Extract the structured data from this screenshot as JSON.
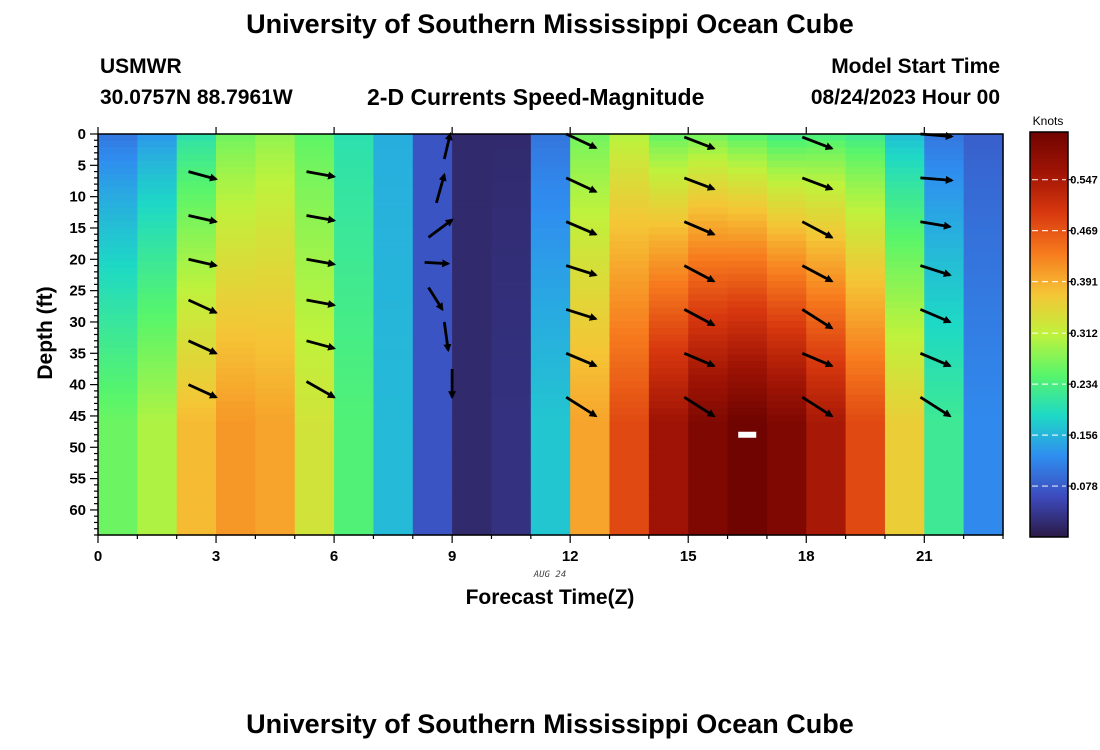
{
  "header": {
    "title": "University of Southern Mississippi Ocean Cube",
    "station": "USMWR",
    "coords": "30.0757N  88.7961W",
    "subtitle": "2-D Currents Speed-Magnitude",
    "model_start_label": "Model Start Time",
    "model_start_value": "08/24/2023 Hour 00"
  },
  "footer": {
    "title": "University of Southern Mississippi Ocean Cube"
  },
  "chart_data": {
    "type": "heatmap",
    "title": "2-D Currents Speed-Magnitude",
    "xlabel": "Forecast Time(Z)",
    "xlabel_date": "AUG 24",
    "ylabel": "Depth (ft)",
    "xlim": [
      0,
      23
    ],
    "ylim": [
      0,
      64
    ],
    "y_inverted": true,
    "x_ticks": [
      "0",
      "3",
      "6",
      "9",
      "12",
      "15",
      "18",
      "21"
    ],
    "y_ticks": [
      "0",
      "5",
      "10",
      "15",
      "20",
      "25",
      "30",
      "35",
      "40",
      "45",
      "50",
      "55",
      "60"
    ],
    "colorbar": {
      "label": "Knots",
      "range": [
        0,
        0.62
      ],
      "ticks": [
        "0.547",
        "0.469",
        "0.391",
        "0.312",
        "0.234",
        "0.156",
        "0.078"
      ]
    },
    "colors": [
      "#2b1a47",
      "#3d4bbd",
      "#2f8ef0",
      "#1ed9c5",
      "#58f56b",
      "#bff23c",
      "#f5c536",
      "#f77b1e",
      "#d8380e",
      "#a01405",
      "#700400"
    ],
    "hours": [
      0,
      1,
      2,
      3,
      4,
      5,
      6,
      7,
      8,
      9,
      10,
      11,
      12,
      13,
      14,
      15,
      16,
      17,
      18,
      19,
      20,
      21,
      22
    ],
    "speed_surface": [
      0.1,
      0.13,
      0.2,
      0.26,
      0.28,
      0.25,
      0.2,
      0.15,
      0.07,
      0.02,
      0.02,
      0.1,
      0.26,
      0.3,
      0.25,
      0.26,
      0.24,
      0.22,
      0.23,
      0.22,
      0.16,
      0.1,
      0.08
    ],
    "speed_bottom": [
      0.26,
      0.3,
      0.38,
      0.41,
      0.4,
      0.33,
      0.24,
      0.16,
      0.07,
      0.02,
      0.03,
      0.17,
      0.4,
      0.48,
      0.56,
      0.6,
      0.62,
      0.6,
      0.55,
      0.48,
      0.36,
      0.22,
      0.12
    ],
    "vectors": [
      {
        "hour": 2.3,
        "depth": 6,
        "dx": 0.7,
        "dy": 1.2
      },
      {
        "hour": 2.3,
        "depth": 13,
        "dx": 0.7,
        "dy": 1.0
      },
      {
        "hour": 2.3,
        "depth": 20,
        "dx": 0.7,
        "dy": 1.0
      },
      {
        "hour": 2.3,
        "depth": 26.5,
        "dx": 0.7,
        "dy": 2.0
      },
      {
        "hour": 2.3,
        "depth": 33,
        "dx": 0.7,
        "dy": 2.0
      },
      {
        "hour": 2.3,
        "depth": 40,
        "dx": 0.7,
        "dy": 2.0
      },
      {
        "hour": 5.3,
        "depth": 6,
        "dx": 0.7,
        "dy": 0.8
      },
      {
        "hour": 5.3,
        "depth": 13,
        "dx": 0.7,
        "dy": 0.8
      },
      {
        "hour": 5.3,
        "depth": 20,
        "dx": 0.7,
        "dy": 0.8
      },
      {
        "hour": 5.3,
        "depth": 26.5,
        "dx": 0.7,
        "dy": 0.8
      },
      {
        "hour": 5.3,
        "depth": 33,
        "dx": 0.7,
        "dy": 1.2
      },
      {
        "hour": 5.3,
        "depth": 39.5,
        "dx": 0.7,
        "dy": 2.5
      },
      {
        "hour": 8.8,
        "depth": 4,
        "dx": 0.15,
        "dy": -4.0
      },
      {
        "hour": 8.6,
        "depth": 11,
        "dx": 0.2,
        "dy": -4.5
      },
      {
        "hour": 8.4,
        "depth": 16.5,
        "dx": 0.6,
        "dy": -2.8
      },
      {
        "hour": 8.3,
        "depth": 20.5,
        "dx": 0.6,
        "dy": 0.2
      },
      {
        "hour": 8.4,
        "depth": 24.5,
        "dx": 0.35,
        "dy": 3.5
      },
      {
        "hour": 8.8,
        "depth": 30,
        "dx": 0.1,
        "dy": 4.5
      },
      {
        "hour": 9.0,
        "depth": 37.5,
        "dx": 0.0,
        "dy": 4.5
      },
      {
        "hour": 11.9,
        "depth": 0,
        "dx": 0.75,
        "dy": 2.2
      },
      {
        "hour": 11.9,
        "depth": 7,
        "dx": 0.75,
        "dy": 2.2
      },
      {
        "hour": 11.9,
        "depth": 14,
        "dx": 0.75,
        "dy": 2.0
      },
      {
        "hour": 11.9,
        "depth": 21,
        "dx": 0.75,
        "dy": 1.5
      },
      {
        "hour": 11.9,
        "depth": 28,
        "dx": 0.75,
        "dy": 1.5
      },
      {
        "hour": 11.9,
        "depth": 35,
        "dx": 0.75,
        "dy": 2.0
      },
      {
        "hour": 11.9,
        "depth": 42,
        "dx": 0.75,
        "dy": 3.0
      },
      {
        "hour": 14.9,
        "depth": 0.5,
        "dx": 0.75,
        "dy": 1.8
      },
      {
        "hour": 14.9,
        "depth": 7,
        "dx": 0.75,
        "dy": 1.8
      },
      {
        "hour": 14.9,
        "depth": 14,
        "dx": 0.75,
        "dy": 2.0
      },
      {
        "hour": 14.9,
        "depth": 21,
        "dx": 0.75,
        "dy": 2.5
      },
      {
        "hour": 14.9,
        "depth": 28,
        "dx": 0.75,
        "dy": 2.5
      },
      {
        "hour": 14.9,
        "depth": 35,
        "dx": 0.75,
        "dy": 2.0
      },
      {
        "hour": 14.9,
        "depth": 42,
        "dx": 0.75,
        "dy": 3.0
      },
      {
        "hour": 17.9,
        "depth": 0.5,
        "dx": 0.75,
        "dy": 1.8
      },
      {
        "hour": 17.9,
        "depth": 7,
        "dx": 0.75,
        "dy": 1.8
      },
      {
        "hour": 17.9,
        "depth": 14,
        "dx": 0.75,
        "dy": 2.5
      },
      {
        "hour": 17.9,
        "depth": 21,
        "dx": 0.75,
        "dy": 2.5
      },
      {
        "hour": 17.9,
        "depth": 28,
        "dx": 0.75,
        "dy": 3.0
      },
      {
        "hour": 17.9,
        "depth": 35,
        "dx": 0.75,
        "dy": 2.0
      },
      {
        "hour": 17.9,
        "depth": 42,
        "dx": 0.75,
        "dy": 3.0
      },
      {
        "hour": 20.9,
        "depth": 0,
        "dx": 0.8,
        "dy": 0.4
      },
      {
        "hour": 20.9,
        "depth": 7,
        "dx": 0.8,
        "dy": 0.4
      },
      {
        "hour": 20.9,
        "depth": 14,
        "dx": 0.75,
        "dy": 0.8
      },
      {
        "hour": 20.9,
        "depth": 21,
        "dx": 0.75,
        "dy": 1.5
      },
      {
        "hour": 20.9,
        "depth": 28,
        "dx": 0.75,
        "dy": 2.0
      },
      {
        "hour": 20.9,
        "depth": 35,
        "dx": 0.75,
        "dy": 2.0
      },
      {
        "hour": 20.9,
        "depth": 42,
        "dx": 0.75,
        "dy": 3.0
      }
    ],
    "bottom_marker": {
      "hour": 16.5,
      "depth": 48
    }
  }
}
